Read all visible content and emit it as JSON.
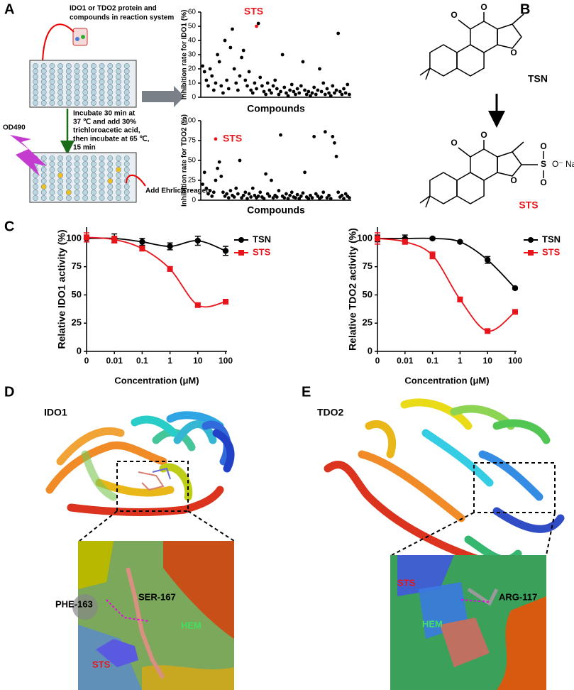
{
  "panels": {
    "a": "A",
    "b": "B",
    "c": "C",
    "d": "D",
    "e": "E"
  },
  "workflow": {
    "step1": [
      "IDO1 or TDO2 protein and",
      "compounds in reaction system"
    ],
    "step2": [
      "Incubate 30 min at",
      "37 ℃ and add 30%",
      "trichloroacetic acid,",
      "then incubate at 65 ℃,",
      "15 min"
    ],
    "readout": "OD490",
    "reagent": "Add Ehrlich'reagen"
  },
  "structures": {
    "tsn": {
      "name": "TSN",
      "atoms": [
        "O",
        "O",
        "O"
      ]
    },
    "sts": {
      "name": "STS",
      "atoms": [
        "O",
        "O",
        "O",
        "S",
        "O",
        "O",
        "O⁻ Na⁺"
      ]
    }
  },
  "docking": [
    {
      "protein": "IDO1",
      "labels": [
        "PHE-163",
        "SER-167",
        "HEM",
        "STS"
      ]
    },
    {
      "protein": "TDO2",
      "labels": [
        "ARG-117",
        "STS",
        "HEM"
      ]
    }
  ],
  "chart_data": [
    {
      "type": "scatter",
      "ylabel": "Inhibition rate for IDO1 (%)",
      "xlabel": "Compounds",
      "xlim": [
        0,
        81
      ],
      "ylim": [
        0,
        60
      ],
      "yticks": [
        0,
        10,
        20,
        30,
        40,
        50,
        60
      ],
      "series": [
        {
          "color": "#000000",
          "x": [
            1,
            2,
            3,
            4,
            5,
            6,
            7,
            8,
            9,
            10,
            11,
            12,
            13,
            14,
            15,
            16,
            17,
            18,
            19,
            20,
            21,
            22,
            23,
            24,
            25,
            26,
            27,
            28,
            29,
            30,
            31,
            32,
            33,
            34,
            35,
            36,
            37,
            38,
            39,
            40,
            41,
            42,
            43,
            44,
            45,
            46,
            47,
            48,
            49,
            50,
            51,
            52,
            53,
            54,
            55,
            56,
            57,
            58,
            59,
            60,
            61,
            62,
            63,
            64,
            65,
            66,
            67,
            68,
            69,
            70,
            71,
            72,
            73,
            74,
            75,
            76,
            77,
            78,
            79,
            80
          ],
          "values": [
            22,
            18,
            12,
            8,
            20,
            15,
            5,
            10,
            30,
            25,
            8,
            3,
            40,
            12,
            6,
            35,
            48,
            20,
            10,
            5,
            15,
            28,
            33,
            12,
            8,
            18,
            5,
            3,
            10,
            6,
            52,
            14,
            8,
            4,
            2,
            10,
            5,
            3,
            8,
            12,
            6,
            2,
            4,
            30,
            7,
            3,
            1,
            5,
            9,
            4,
            2,
            6,
            3,
            8,
            25,
            5,
            2,
            4,
            1,
            3,
            7,
            2,
            5,
            20,
            4,
            10,
            2,
            6,
            3,
            1,
            8,
            3,
            5,
            45,
            4,
            2,
            6,
            3,
            9,
            2
          ]
        },
        {
          "name": "STS",
          "color": "#e8141b",
          "x": [
            30
          ],
          "values": [
            50
          ]
        }
      ]
    },
    {
      "type": "scatter",
      "ylabel": "Inhibition rate for TDO2 (%)",
      "xlabel": "Compounds",
      "xlim": [
        0,
        81
      ],
      "ylim": [
        0,
        100
      ],
      "yticks": [
        0,
        25,
        50,
        75,
        100
      ],
      "series": [
        {
          "color": "#000000",
          "x": [
            1,
            2,
            3,
            4,
            5,
            6,
            7,
            8,
            9,
            10,
            11,
            12,
            13,
            14,
            15,
            16,
            17,
            18,
            19,
            20,
            21,
            22,
            23,
            24,
            25,
            26,
            27,
            28,
            29,
            30,
            31,
            32,
            33,
            34,
            35,
            36,
            37,
            38,
            39,
            40,
            41,
            42,
            43,
            44,
            45,
            46,
            47,
            48,
            49,
            50,
            51,
            52,
            53,
            54,
            55,
            56,
            57,
            58,
            59,
            60,
            61,
            62,
            63,
            64,
            65,
            66,
            67,
            68,
            69,
            70,
            71,
            72,
            73,
            74,
            75,
            76,
            77,
            78,
            79,
            80
          ],
          "values": [
            20,
            35,
            15,
            8,
            12,
            5,
            10,
            25,
            40,
            48,
            30,
            10,
            5,
            8,
            3,
            12,
            6,
            4,
            15,
            8,
            50,
            3,
            6,
            10,
            2,
            8,
            4,
            15,
            6,
            3,
            5,
            10,
            4,
            2,
            33,
            8,
            5,
            25,
            3,
            6,
            4,
            12,
            82,
            5,
            3,
            8,
            2,
            6,
            10,
            4,
            3,
            7,
            2,
            5,
            9,
            35,
            4,
            2,
            6,
            3,
            80,
            8,
            5,
            2,
            4,
            10,
            86,
            3,
            6,
            2,
            80,
            72,
            55,
            10,
            4,
            6,
            2,
            8,
            5,
            3
          ]
        },
        {
          "name": "STS",
          "color": "#e8141b",
          "x": [
            8
          ],
          "values": [
            77
          ]
        }
      ]
    },
    {
      "type": "line",
      "ylabel": "Relative  IDO1 activity (%)",
      "xlabel": "Concentration (μM)",
      "categories": [
        "0",
        "0.01",
        "0.1",
        "1",
        "10",
        "100"
      ],
      "ylim": [
        0,
        110
      ],
      "yticks": [
        0,
        25,
        50,
        75,
        100
      ],
      "series": [
        {
          "name": "TSN",
          "color": "#000000",
          "marker": "circle",
          "values": [
            100,
            100,
            97,
            93,
            98,
            89
          ],
          "errors": [
            3,
            4,
            3,
            3,
            4,
            4
          ]
        },
        {
          "name": "STS",
          "color": "#e8141b",
          "marker": "square",
          "values": [
            101,
            99,
            91,
            73,
            41,
            44
          ],
          "errors": [
            4,
            3,
            2,
            2,
            1,
            1
          ]
        }
      ]
    },
    {
      "type": "line",
      "ylabel": "Relative  TDO2 activity (%)",
      "xlabel": "Concentration (μM)",
      "categories": [
        "0",
        "0.01",
        "0.1",
        "1",
        "10",
        "100"
      ],
      "ylim": [
        0,
        110
      ],
      "yticks": [
        0,
        25,
        50,
        75,
        100
      ],
      "series": [
        {
          "name": "TSN",
          "color": "#000000",
          "marker": "circle",
          "values": [
            100,
            100,
            100,
            97,
            81,
            56
          ],
          "errors": [
            3,
            3,
            1,
            1,
            3,
            1
          ]
        },
        {
          "name": "STS",
          "color": "#e8141b",
          "marker": "square",
          "values": [
            100,
            97,
            85,
            46,
            18,
            35
          ],
          "errors": [
            5,
            2,
            3,
            2,
            1,
            1
          ]
        }
      ]
    }
  ]
}
